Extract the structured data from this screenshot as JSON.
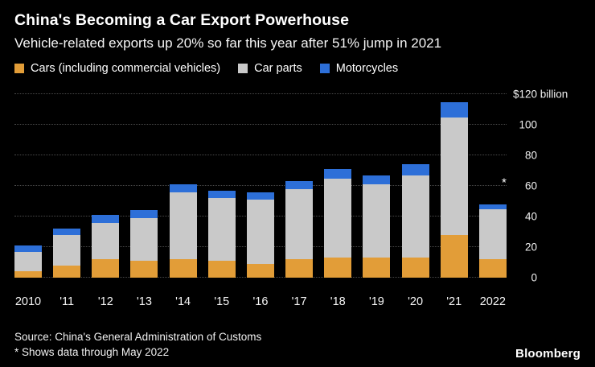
{
  "header": {
    "title": "China's Becoming a Car Export Powerhouse",
    "subtitle": "Vehicle-related exports up 20% so far this year after 51% jump in 2021"
  },
  "legend": {
    "items": [
      {
        "label": "Cars (including commercial vehicles)",
        "color": "#e29d38"
      },
      {
        "label": "Car parts",
        "color": "#c9c9c9"
      },
      {
        "label": "Motorcycles",
        "color": "#2d6fd8"
      }
    ]
  },
  "chart_data": {
    "type": "bar",
    "stacked": true,
    "title": "China's Becoming a Car Export Powerhouse",
    "subtitle": "Vehicle-related exports up 20% so far this year after 51% jump in 2021",
    "unit": "$ billion",
    "categories": [
      "2010",
      "'11",
      "'12",
      "'13",
      "'14",
      "'15",
      "'16",
      "'17",
      "'18",
      "'19",
      "'20",
      "'21",
      "2022"
    ],
    "series": [
      {
        "name": "Cars (including commercial vehicles)",
        "color": "#e29d38",
        "values": [
          4,
          8,
          12,
          11,
          12,
          11,
          9,
          12,
          13,
          13,
          13,
          28,
          12
        ]
      },
      {
        "name": "Car parts",
        "color": "#c9c9c9",
        "values": [
          13,
          20,
          24,
          28,
          44,
          41,
          42,
          46,
          52,
          48,
          54,
          77,
          33
        ]
      },
      {
        "name": "Motorcycles",
        "color": "#2d6fd8",
        "values": [
          4,
          4,
          5,
          5,
          5,
          5,
          5,
          5,
          6,
          6,
          7,
          10,
          3
        ]
      }
    ],
    "ylim": [
      0,
      120
    ],
    "y_ticks": [
      {
        "value": 120,
        "label": "$120 billion"
      },
      {
        "value": 100,
        "label": "100"
      },
      {
        "value": 80,
        "label": "80"
      },
      {
        "value": 60,
        "label": "60"
      },
      {
        "value": 40,
        "label": "40"
      },
      {
        "value": 20,
        "label": "20"
      },
      {
        "value": 0,
        "label": "0"
      }
    ],
    "annotation": {
      "symbol": "*",
      "value": 62
    },
    "grid": "dotted-horizontal",
    "legend_position": "top"
  },
  "footer": {
    "source": "Source: China's General Administration of Customs",
    "note": "* Shows data through May 2022",
    "logo": "Bloomberg"
  },
  "colors": {
    "background": "#000000",
    "text": "#ffffff",
    "grid": "#4a4a4a"
  }
}
